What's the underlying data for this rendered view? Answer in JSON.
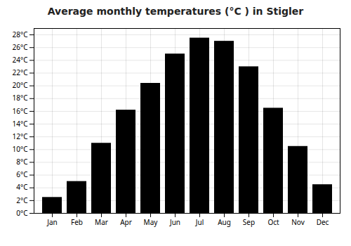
{
  "chart_data": {
    "type": "bar",
    "title": "Average monthly temperatures (°C ) in Stigler",
    "categories": [
      "Jan",
      "Feb",
      "Mar",
      "Apr",
      "May",
      "Jun",
      "Jul",
      "Aug",
      "Sep",
      "Oct",
      "Nov",
      "Dec"
    ],
    "values": [
      2.5,
      5.0,
      11.0,
      16.2,
      20.4,
      25.0,
      27.5,
      27.0,
      23.0,
      16.5,
      10.5,
      4.5
    ],
    "ylim": [
      0,
      29
    ],
    "yticks": [
      {
        "value": 0,
        "label": "0°C"
      },
      {
        "value": 2,
        "label": "2°C"
      },
      {
        "value": 4,
        "label": "4°C"
      },
      {
        "value": 6,
        "label": "6°C"
      },
      {
        "value": 8,
        "label": "8°C"
      },
      {
        "value": 10,
        "label": "10°C"
      },
      {
        "value": 12,
        "label": "12°C"
      },
      {
        "value": 14,
        "label": "14°C"
      },
      {
        "value": 16,
        "label": "16°C"
      },
      {
        "value": 18,
        "label": "18°C"
      },
      {
        "value": 20,
        "label": "20°C"
      },
      {
        "value": 22,
        "label": "22°C"
      },
      {
        "value": 24,
        "label": "24°C"
      },
      {
        "value": 26,
        "label": "26°C"
      },
      {
        "value": 28,
        "label": "28°C"
      }
    ],
    "grid": true
  }
}
